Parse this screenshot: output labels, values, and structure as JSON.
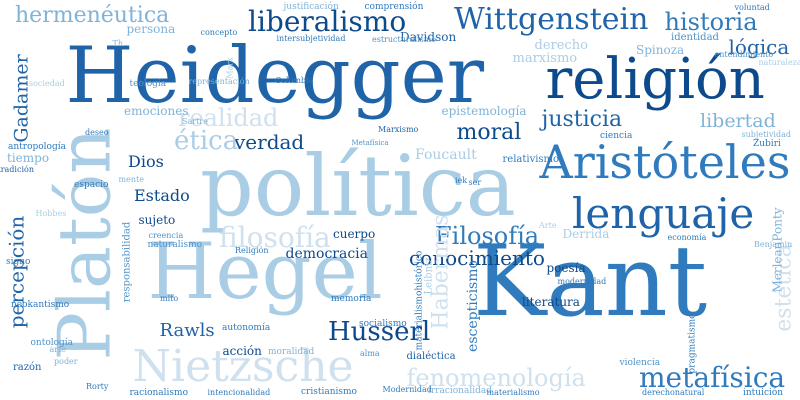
{
  "colors": {
    "c1": "#0d4a8c",
    "c2": "#1f63a8",
    "c3": "#2f7bbd",
    "c4": "#4f93c8",
    "c5": "#7fb3d8",
    "c6": "#aacde6",
    "c7": "#cfe0ee"
  },
  "words": [
    {
      "text": "Kant",
      "color": "c3"
    },
    {
      "text": "Heidegger",
      "color": "c2"
    },
    {
      "text": "política",
      "color": "c6"
    },
    {
      "text": "Hegel",
      "color": "c6"
    },
    {
      "text": "Platón",
      "color": "c6"
    },
    {
      "text": "religión",
      "color": "c1"
    },
    {
      "text": "Aristóteles",
      "color": "c3"
    },
    {
      "text": "lenguaje",
      "color": "c2"
    },
    {
      "text": "Nietzsche",
      "color": "c7"
    },
    {
      "text": "Wittgenstein",
      "color": "c2"
    },
    {
      "text": "liberalismo",
      "color": "c1"
    },
    {
      "text": "historia",
      "color": "c3"
    },
    {
      "text": "hermenéutica",
      "color": "c5"
    },
    {
      "text": "Husserl",
      "color": "c1"
    },
    {
      "text": "metafísica",
      "color": "c3"
    },
    {
      "text": "fenomenología",
      "color": "c7"
    },
    {
      "text": "conocimiento",
      "color": "c1"
    },
    {
      "text": "Filosofía",
      "color": "c3"
    },
    {
      "text": "percepción",
      "color": "c2"
    },
    {
      "text": "filosofía",
      "color": "c7"
    },
    {
      "text": "moral",
      "color": "c1"
    },
    {
      "text": "verdad",
      "color": "c1"
    },
    {
      "text": "realidad",
      "color": "c7"
    },
    {
      "text": "justicia",
      "color": "c2"
    },
    {
      "text": "ética",
      "color": "c6"
    },
    {
      "text": "lógica",
      "color": "c2"
    },
    {
      "text": "libertad",
      "color": "c5"
    },
    {
      "text": "Gadamer",
      "color": "c2"
    },
    {
      "text": "Dios",
      "color": "c1"
    },
    {
      "text": "Estado",
      "color": "c1"
    },
    {
      "text": "Rawls",
      "color": "c2"
    },
    {
      "text": "estética",
      "color": "c7"
    },
    {
      "text": "democracia",
      "color": "c1"
    },
    {
      "text": "sujeto",
      "color": "c1"
    },
    {
      "text": "cuerpo",
      "color": "c1"
    },
    {
      "text": "poesía",
      "color": "c1"
    },
    {
      "text": "literatura",
      "color": "c1"
    },
    {
      "text": "acción",
      "color": "c1"
    },
    {
      "text": "Davidson",
      "color": "c2"
    },
    {
      "text": "epistemología",
      "color": "c5"
    },
    {
      "text": "derecho",
      "color": "c6"
    },
    {
      "text": "Spinoza",
      "color": "c5"
    },
    {
      "text": "marxismo",
      "color": "c6"
    },
    {
      "text": "persona",
      "color": "c5"
    },
    {
      "text": "teología",
      "color": "c4"
    },
    {
      "text": "emociones",
      "color": "c5"
    },
    {
      "text": "Habermas",
      "color": "c7"
    },
    {
      "text": "Foucault",
      "color": "c6"
    },
    {
      "text": "escepticismo",
      "color": "c3"
    },
    {
      "text": "materialismohistórico",
      "color": "c3"
    },
    {
      "text": "Leibniz",
      "color": "c6"
    },
    {
      "text": "subjetividad",
      "color": "c5"
    },
    {
      "text": "Derrida",
      "color": "c6"
    },
    {
      "text": "MerleauPonty",
      "color": "c5"
    },
    {
      "text": "Zubiri",
      "color": "c3"
    },
    {
      "text": "ciencia",
      "color": "c3"
    },
    {
      "text": "identidad",
      "color": "c4"
    },
    {
      "text": "entendimiento",
      "color": "c4"
    },
    {
      "text": "voluntad",
      "color": "c3"
    },
    {
      "text": "comprensión",
      "color": "c3"
    },
    {
      "text": "justificación",
      "color": "c5"
    },
    {
      "text": "intersubjetividad",
      "color": "c3"
    },
    {
      "text": "estructuralismo",
      "color": "c4"
    },
    {
      "text": "concepto",
      "color": "c3"
    },
    {
      "text": "Colombia",
      "color": "c3"
    },
    {
      "text": "representación",
      "color": "c5"
    },
    {
      "text": "Marx",
      "color": "c6"
    },
    {
      "text": "Th",
      "color": "c5"
    },
    {
      "text": "Sartre",
      "color": "c5"
    },
    {
      "text": "Marxismo",
      "color": "c2"
    },
    {
      "text": "Metafísica",
      "color": "c4"
    },
    {
      "text": "deseo",
      "color": "c3"
    },
    {
      "text": "antropología",
      "color": "c3"
    },
    {
      "text": "tiempo",
      "color": "c5"
    },
    {
      "text": "tradición",
      "color": "c2"
    },
    {
      "text": "espacio",
      "color": "c3"
    },
    {
      "text": "Hobbes",
      "color": "c6"
    },
    {
      "text": "creencia",
      "color": "c4"
    },
    {
      "text": "naturalismo",
      "color": "c4"
    },
    {
      "text": "Religión",
      "color": "c3"
    },
    {
      "text": "responsabilidad",
      "color": "c4"
    },
    {
      "text": "signo",
      "color": "c3"
    },
    {
      "text": "neokantismo",
      "color": "c3"
    },
    {
      "text": "mito",
      "color": "c3"
    },
    {
      "text": "memoria",
      "color": "c3"
    },
    {
      "text": "autonomía",
      "color": "c3"
    },
    {
      "text": "ontología",
      "color": "c4"
    },
    {
      "text": "moralidad",
      "color": "c5"
    },
    {
      "text": "socialismo",
      "color": "c3"
    },
    {
      "text": "alma",
      "color": "c4"
    },
    {
      "text": "razón",
      "color": "c2"
    },
    {
      "text": "Rorty",
      "color": "c3"
    },
    {
      "text": "racionalismo",
      "color": "c3"
    },
    {
      "text": "intencionalidad",
      "color": "c3"
    },
    {
      "text": "cristianismo",
      "color": "c3"
    },
    {
      "text": "Modernidad",
      "color": "c3"
    },
    {
      "text": "irracionalidad",
      "color": "c5"
    },
    {
      "text": "materialismo",
      "color": "c3"
    },
    {
      "text": "derechonatural",
      "color": "c3"
    },
    {
      "text": "intuición",
      "color": "c3"
    },
    {
      "text": "pragmatismo",
      "color": "c3"
    },
    {
      "text": "violencia",
      "color": "c4"
    },
    {
      "text": "modernidad",
      "color": "c3"
    },
    {
      "text": "economía",
      "color": "c3"
    },
    {
      "text": "Benjamin",
      "color": "c5"
    },
    {
      "text": "relativismo",
      "color": "c3"
    },
    {
      "text": "dialéctica",
      "color": "c2"
    },
    {
      "text": "Arte",
      "color": "c6"
    },
    {
      "text": "iek",
      "color": "c3"
    },
    {
      "text": "ser",
      "color": "c3"
    },
    {
      "text": "mente",
      "color": "c5"
    },
    {
      "text": "poder",
      "color": "c5"
    },
    {
      "text": "arte",
      "color": "c5"
    },
    {
      "text": "sociedad",
      "color": "c6"
    },
    {
      "text": "naturaleza",
      "color": "c6"
    }
  ]
}
